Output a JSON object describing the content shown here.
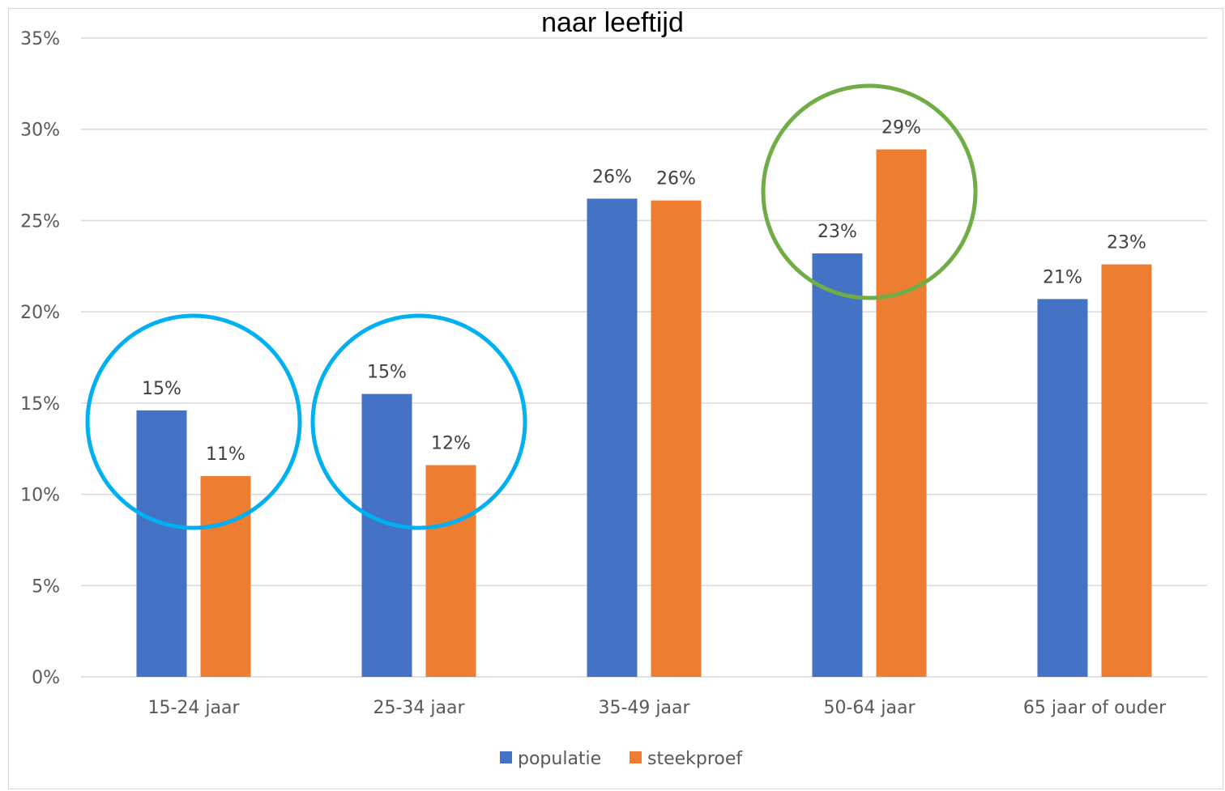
{
  "chart_data": {
    "type": "bar",
    "title": "naar leeftijd",
    "xlabel": "",
    "ylabel": "",
    "ylim": [
      0,
      35
    ],
    "y_ticks": [
      "0%",
      "5%",
      "10%",
      "15%",
      "20%",
      "25%",
      "30%",
      "35%"
    ],
    "categories": [
      "15-24 jaar",
      "25-34 jaar",
      "35-49 jaar",
      "50-64 jaar",
      "65 jaar of ouder"
    ],
    "series": [
      {
        "name": "populatie",
        "color": "#4472c4",
        "values": [
          14.6,
          15.5,
          26.2,
          23.2,
          20.7
        ],
        "labels": [
          "15%",
          "15%",
          "26%",
          "23%",
          "21%"
        ]
      },
      {
        "name": "steekproef",
        "color": "#ed7d31",
        "values": [
          11.0,
          11.6,
          26.1,
          28.9,
          22.6
        ],
        "labels": [
          "11%",
          "12%",
          "26%",
          "29%",
          "23%"
        ]
      }
    ],
    "grid": true,
    "legend_position": "bottom",
    "highlights": [
      {
        "category": "15-24 jaar",
        "color": "#00b0f0"
      },
      {
        "category": "25-34 jaar",
        "color": "#00b0f0"
      },
      {
        "category": "50-64 jaar",
        "color": "#70ad47"
      }
    ]
  }
}
